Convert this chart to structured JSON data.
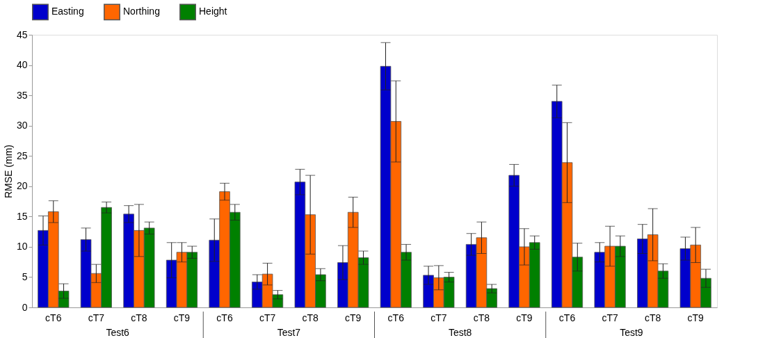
{
  "chart_data": {
    "type": "bar",
    "ylabel": "RMSE (mm)",
    "categories": [
      "cT6",
      "cT7",
      "cT8",
      "cT9",
      "cT6",
      "cT7",
      "cT8",
      "cT9",
      "cT6",
      "cT7",
      "cT8",
      "cT9",
      "cT6",
      "cT7",
      "cT8",
      "cT9"
    ],
    "annotations": [
      "Test6",
      "Test7",
      "Test8",
      "Test9"
    ],
    "series": [
      {
        "name": "Easting",
        "color": "#0000cc",
        "values": [
          12.7,
          11.2,
          15.4,
          7.8,
          11.1,
          4.2,
          20.7,
          7.4,
          39.8,
          5.3,
          10.4,
          21.8,
          34.0,
          9.1,
          11.3,
          9.7
        ],
        "errors": [
          2.4,
          1.9,
          1.4,
          2.9,
          3.5,
          1.2,
          2.1,
          2.8,
          3.9,
          1.5,
          1.8,
          1.8,
          2.7,
          1.6,
          2.4,
          1.9
        ]
      },
      {
        "name": "Northing",
        "color": "#ff6600",
        "values": [
          15.8,
          5.6,
          12.7,
          9.1,
          19.1,
          5.5,
          15.3,
          15.7,
          30.7,
          4.9,
          11.5,
          10.0,
          23.9,
          10.1,
          12.0,
          10.3
        ],
        "errors": [
          1.8,
          1.5,
          4.3,
          1.6,
          1.4,
          1.8,
          6.5,
          2.5,
          6.7,
          2.0,
          2.6,
          3.0,
          6.6,
          3.3,
          4.3,
          2.9
        ]
      },
      {
        "name": "Height",
        "color": "#008000",
        "values": [
          2.7,
          16.5,
          13.1,
          9.1,
          15.7,
          2.1,
          5.4,
          8.2,
          9.1,
          5.0,
          3.1,
          10.7,
          8.3,
          10.1,
          6.0,
          4.8
        ],
        "errors": [
          1.2,
          0.9,
          1.0,
          1.0,
          1.3,
          0.7,
          1.0,
          1.1,
          1.3,
          0.8,
          0.7,
          1.1,
          2.3,
          1.7,
          1.2,
          1.5
        ]
      }
    ],
    "ylim": [
      0,
      45
    ],
    "yticks": [
      0,
      5,
      10,
      15,
      20,
      25,
      30,
      35,
      40,
      45
    ],
    "grid": false,
    "legend": "top"
  }
}
